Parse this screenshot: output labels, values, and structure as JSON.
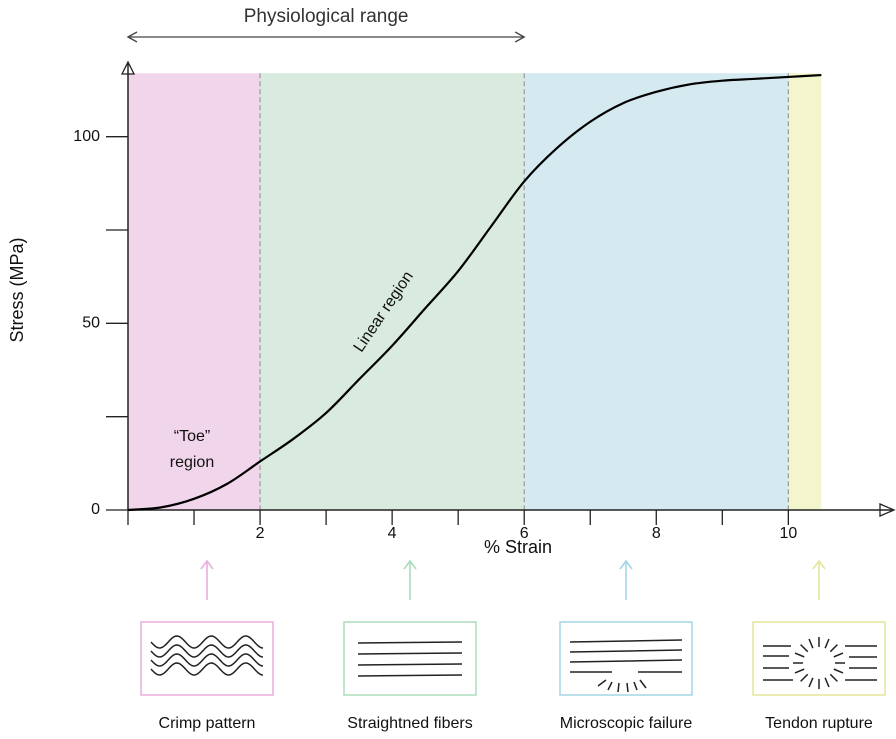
{
  "chart_data": {
    "type": "line",
    "xlabel": "% Strain",
    "ylabel": "Stress (MPa)",
    "xlim": [
      0,
      11.6
    ],
    "ylim": [
      0,
      120
    ],
    "xticks": [
      2,
      4,
      6,
      8,
      10
    ],
    "xminor_ticks": [
      0,
      1,
      3,
      5,
      7,
      9
    ],
    "yticks": [
      0,
      50,
      100
    ],
    "yminor_ticks": [
      25,
      75
    ],
    "series": [
      {
        "color": "#000000",
        "x": [
          0,
          0.5,
          1,
          1.5,
          2,
          2.5,
          3,
          3.5,
          4,
          4.5,
          5,
          5.5,
          6,
          6.5,
          7,
          7.5,
          8,
          8.5,
          9,
          9.5,
          10,
          10.5
        ],
        "values": [
          0,
          0.7,
          3,
          7,
          13,
          19,
          26,
          35,
          44,
          54,
          64,
          76,
          88,
          97,
          104,
          109,
          112,
          114,
          115,
          115.5,
          116,
          116.5
        ]
      }
    ],
    "region_height": 117,
    "regions": [
      {
        "from": 0,
        "to": 2,
        "color": "#f1d6eb"
      },
      {
        "from": 2,
        "to": 6,
        "color": "#d9ebdf"
      },
      {
        "from": 6,
        "to": 10,
        "color": "#d4e9f0"
      },
      {
        "from": 10,
        "to": 10.5,
        "color": "#f3f5cc"
      }
    ],
    "range": {
      "label": "Physiological range",
      "from": 0,
      "to": 6
    },
    "annotations": {
      "toe": [
        "“Toe”",
        "region"
      ],
      "linear": "Linear region"
    },
    "stages": [
      {
        "label": "Crimp pattern",
        "color": "#e8aede"
      },
      {
        "label": "Straightned fibers",
        "color": "#acdcbc"
      },
      {
        "label": "Microscopic failure",
        "color": "#a4d6e6"
      },
      {
        "label": "Tendon rupture",
        "color": "#e4e69c"
      }
    ]
  }
}
